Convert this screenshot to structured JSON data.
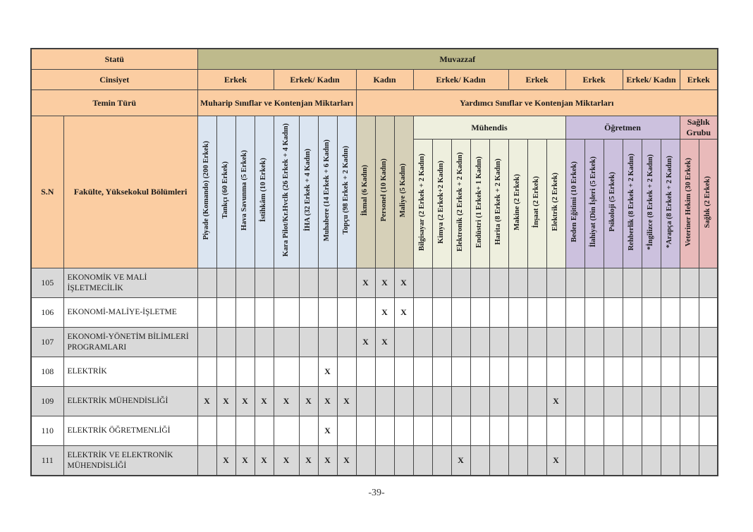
{
  "page": {
    "number_label": "-39-"
  },
  "colors": {
    "header_peach": "#fbcda2",
    "muvazzaf_olive": "#beba8c",
    "muharip_blue": "#dbe5f1",
    "kadin_tan": "#d6d0b8",
    "muhendis_cream": "#eeefde",
    "ogretmen_purple": "#ccc1de",
    "saglik_pink": "#e9baba",
    "row_gray": "#d9d9d9"
  },
  "table": {
    "top_headers": {
      "statu_label": "Statü",
      "muvazzaf_label": "Muvazzaf",
      "cinsiyet_label": "Cinsiyet",
      "temin_turu_label": "Temin Türü",
      "muharip_label": "Muharip Sınıflar ve Kontenjan Miktarları",
      "yardimci_label": "Yardımcı Sınıflar ve Kontenjan Miktarları",
      "gender_spans": [
        {
          "label": "Erkek",
          "cols": 4
        },
        {
          "label": "Erkek/ Kadın",
          "cols": 4
        },
        {
          "label": "Kadın",
          "cols": 3
        },
        {
          "label": "Erkek/ Kadın",
          "cols": 5
        },
        {
          "label": "Erkek",
          "cols": 3
        },
        {
          "label": "Erkek",
          "cols": 3
        },
        {
          "label": "Erkek/ Kadın",
          "cols": 3
        },
        {
          "label": "Erkek",
          "cols": 2
        }
      ]
    },
    "corner": {
      "sn_label": "S.N",
      "faculty_label": "Fakülte, Yüksekokul Bölümleri"
    },
    "column_groups": [
      {
        "name": "muharip-siniflar",
        "header": null,
        "color": "#dbe5f1",
        "columns": [
          "Piyade (Komando) (200 Erkek)",
          "Tankçı (60 Erkek)",
          "Hava Savunma (5 Erkek)",
          "İstihkâm (10 Erkek)",
          "Kara Pilot/Kr.Hvclk (26 Erkek + 4 Kadın)",
          "İHA (32 Erkek + 4 Kadın)",
          "Muhabere (14 Erkek + 6 Kadın)",
          "Topçu (98 Erkek + 2 Kadın)"
        ]
      },
      {
        "name": "yardimci-kadin",
        "header": null,
        "color": "#d6d0b8",
        "columns": [
          "İkmal (6 Kadın)",
          "Personel (10 Kadın)",
          "Maliye (5 Kadın)"
        ]
      },
      {
        "name": "muhendis",
        "header": "Mühendis",
        "color": "#eeefde",
        "columns": [
          "Bilgisayar (2 Erkek + 2 Kadın)",
          "Kimya (2 Erkek+2 Kadın)",
          "Elektronik (2 Erkek + 2 Kadın)",
          "Endüstri (1 Erkek+ 1 Kadın)",
          "Harita (8 Erkek + 2 Kadın)",
          "Makine (2 Erkek)",
          "İnşaat (2 Erkek)",
          "Elektrik (2 Erkek)"
        ]
      },
      {
        "name": "ogretmen",
        "header": "Öğretmen",
        "color": "#ccc1de",
        "columns": [
          "Beden Eğitimi (10 Erkek)",
          "İlahiyat (Din İşleri (5 Erkek)",
          "Psikoloji (5 Erkek)",
          "Rehberlik (8 Erkek + 2 Kadın)",
          "*İngilizce (8 Erkek + 2 Kadın)",
          "*Arapça (8 Erkek + 2 Kadın)"
        ]
      },
      {
        "name": "saglik-grubu",
        "header": "Sağlık Grubu",
        "color": "#e9baba",
        "columns": [
          "Veteriner Hekim  (30 Erkek)",
          "Sağlık (2 Erkek)"
        ]
      }
    ],
    "mark_symbol": "X",
    "rows": [
      {
        "sn": "105",
        "name": "EKONOMİK VE MALİ İŞLETMECİLİK",
        "marks": [
          9,
          10,
          11
        ]
      },
      {
        "sn": "106",
        "name": "EKONOMİ-MALİYE-İŞLETME",
        "marks": [
          10,
          11
        ]
      },
      {
        "sn": "107",
        "name": "EKONOMİ-YÖNETİM BİLİMLERİ PROGRAMLARI",
        "marks": [
          9,
          10
        ]
      },
      {
        "sn": "108",
        "name": "ELEKTRİK",
        "marks": [
          7
        ]
      },
      {
        "sn": "109",
        "name": "ELEKTRİK MÜHENDİSLİĞİ",
        "marks": [
          1,
          2,
          3,
          4,
          5,
          6,
          7,
          8,
          19
        ]
      },
      {
        "sn": "110",
        "name": "ELEKTRİK ÖĞRETMENLİĞİ",
        "marks": [
          7
        ]
      },
      {
        "sn": "111",
        "name": "ELEKTRİK VE ELEKTRONİK MÜHENDİSLİĞİ",
        "marks": [
          2,
          3,
          4,
          5,
          6,
          7,
          8,
          14,
          19
        ]
      }
    ]
  }
}
